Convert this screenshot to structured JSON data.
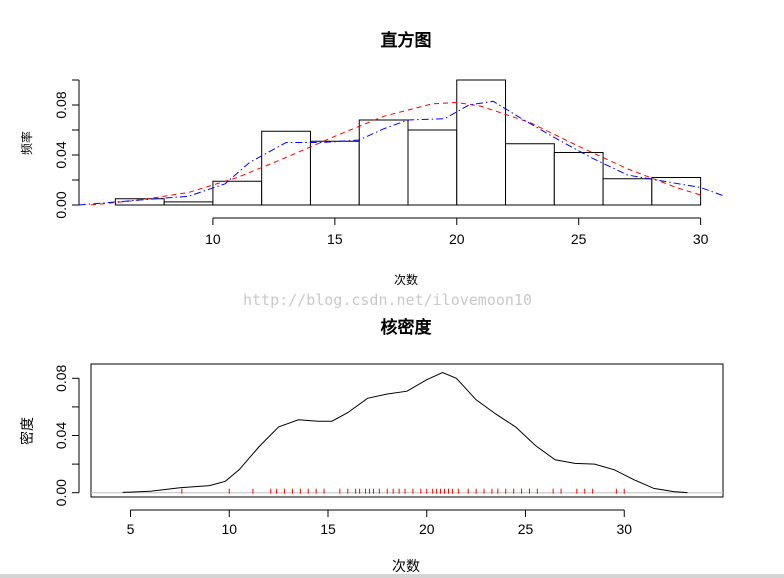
{
  "watermark": "http://blog.csdn.net/ilovemoon10",
  "chart_data": [
    {
      "type": "bar",
      "subtype": "histogram",
      "title": "直方图",
      "xlabel": "次数",
      "ylabel": "频率",
      "xlim": [
        5,
        31
      ],
      "ylim": [
        0,
        0.1
      ],
      "x_ticks": [
        10,
        15,
        20,
        25,
        30
      ],
      "y_ticks": [
        0.0,
        0.04,
        0.08
      ],
      "y_tick_labels": [
        "0.00",
        "0.04",
        "0.08"
      ],
      "bins": [
        {
          "from": 6,
          "to": 8,
          "value": 0.005
        },
        {
          "from": 8,
          "to": 10,
          "value": 0.0025
        },
        {
          "from": 10,
          "to": 12,
          "value": 0.019
        },
        {
          "from": 12,
          "to": 14,
          "value": 0.059
        },
        {
          "from": 14,
          "to": 16,
          "value": 0.051
        },
        {
          "from": 16,
          "to": 18,
          "value": 0.068
        },
        {
          "from": 18,
          "to": 20,
          "value": 0.06
        },
        {
          "from": 20,
          "to": 22,
          "value": 0.1
        },
        {
          "from": 22,
          "to": 24,
          "value": 0.049
        },
        {
          "from": 24,
          "to": 26,
          "value": 0.042
        },
        {
          "from": 26,
          "to": 28,
          "value": 0.021
        },
        {
          "from": 28,
          "to": 30,
          "value": 0.022
        }
      ],
      "series": [
        {
          "color": "#ff0000",
          "dash": "dashed",
          "x": [
            5,
            7,
            9,
            11,
            13,
            15,
            17,
            19,
            20,
            21,
            23,
            25,
            27,
            29,
            30
          ],
          "y": [
            0.0,
            0.004,
            0.01,
            0.022,
            0.038,
            0.055,
            0.071,
            0.081,
            0.082,
            0.079,
            0.066,
            0.047,
            0.029,
            0.014,
            0.008
          ]
        },
        {
          "color": "#0000ff",
          "dash": "dotdash",
          "x": [
            4.5,
            7,
            9,
            10.5,
            11.5,
            13,
            14.5,
            16,
            17,
            18,
            19.5,
            20.5,
            21.5,
            22.5,
            24,
            25.5,
            27,
            28.5,
            30,
            31
          ],
          "y": [
            0.0,
            0.004,
            0.007,
            0.017,
            0.034,
            0.05,
            0.05,
            0.052,
            0.061,
            0.068,
            0.069,
            0.08,
            0.083,
            0.071,
            0.054,
            0.038,
            0.024,
            0.019,
            0.014,
            0.007
          ]
        }
      ]
    },
    {
      "type": "line",
      "subtype": "density",
      "title": "核密度",
      "xlabel": "次数",
      "ylabel": "密度",
      "xlim": [
        3,
        35
      ],
      "ylim": [
        -0.003,
        0.09
      ],
      "x_ticks": [
        5,
        10,
        15,
        20,
        25,
        30
      ],
      "y_ticks": [
        0.0,
        0.04,
        0.08
      ],
      "y_tick_labels": [
        "0.00",
        "0.04",
        "0.08"
      ],
      "series": [
        {
          "color": "#000000",
          "x": [
            4.6,
            6,
            7.5,
            9,
            9.8,
            10.5,
            11.5,
            12.5,
            13.5,
            14.5,
            15.2,
            16,
            17,
            18,
            19,
            20,
            20.8,
            21.5,
            22.5,
            23.5,
            24.5,
            25.5,
            26.5,
            27.5,
            28.5,
            29.5,
            30.5,
            31.5,
            32.5,
            33.2
          ],
          "y": [
            0.0002,
            0.001,
            0.0035,
            0.005,
            0.008,
            0.016,
            0.032,
            0.046,
            0.051,
            0.05,
            0.05,
            0.056,
            0.066,
            0.069,
            0.071,
            0.079,
            0.084,
            0.08,
            0.065,
            0.055,
            0.046,
            0.033,
            0.023,
            0.0205,
            0.02,
            0.016,
            0.009,
            0.003,
            0.0008,
            0.0001
          ]
        }
      ],
      "rug": {
        "color": "#ff0000",
        "x": [
          7.6,
          10.0,
          11.2,
          12.1,
          12.4,
          12.8,
          13.2,
          13.6,
          14.0,
          14.4,
          14.8,
          15.6,
          16.0,
          16.4,
          16.6,
          16.9,
          17.1,
          17.3,
          17.6,
          18.0,
          18.3,
          18.6,
          18.9,
          19.3,
          19.7,
          20.0,
          20.3,
          20.5,
          20.7,
          20.9,
          21.1,
          21.3,
          21.6,
          22.1,
          22.5,
          22.9,
          23.3,
          23.6,
          24.0,
          24.4,
          24.8,
          25.2,
          25.6,
          26.4,
          26.8,
          27.6,
          28.0,
          28.4,
          29.6,
          30.0
        ]
      }
    }
  ]
}
